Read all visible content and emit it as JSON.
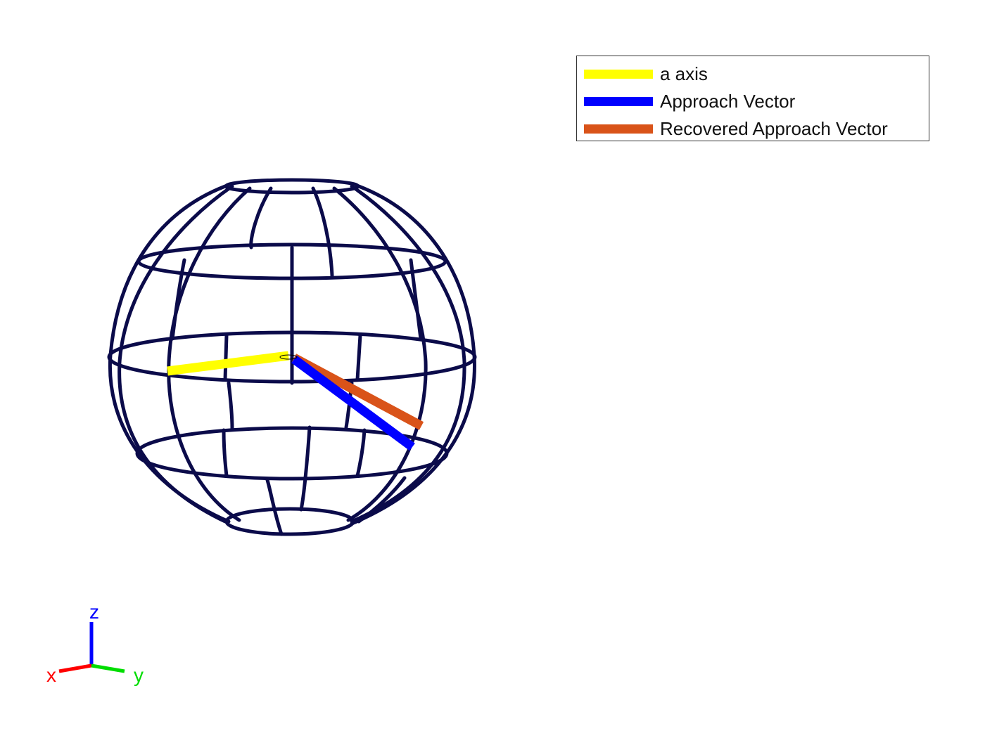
{
  "legend": {
    "entries": [
      {
        "label": "a axis",
        "color": "#ffff00"
      },
      {
        "label": "Approach Vector",
        "color": "#0000ff"
      },
      {
        "label": "Recovered Approach Vector",
        "color": "#d95319"
      }
    ]
  },
  "triad": {
    "x_label": "x",
    "y_label": "y",
    "z_label": "z",
    "x_color": "#ff0000",
    "y_color": "#00dd00",
    "z_color": "#0000ff"
  },
  "wireframe": {
    "color": "#0b0b4a",
    "latitude_rings": 5,
    "meridians": 8
  }
}
